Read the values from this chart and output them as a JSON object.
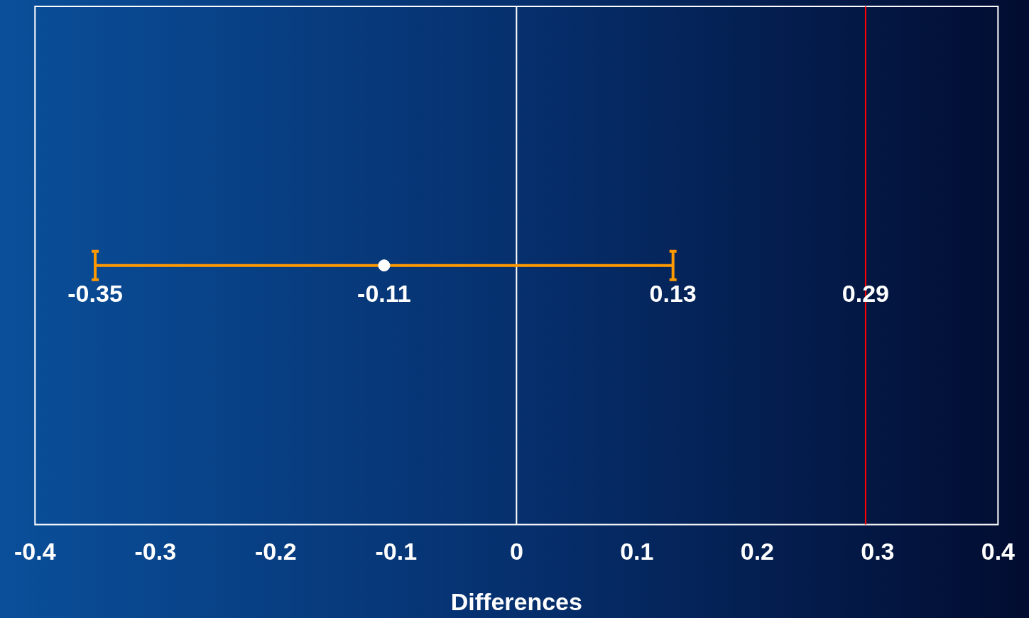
{
  "chart_data": {
    "type": "scatter",
    "orientation": "horizontal",
    "categories": [
      null
    ],
    "xlabel": "Differences",
    "xlim": [
      -0.4,
      0.4
    ],
    "xticks": [
      -0.4,
      -0.3,
      -0.2,
      -0.1,
      0,
      0.1,
      0.2,
      0.3,
      0.4
    ],
    "grid": false,
    "legend": false,
    "marker": "circle",
    "series": [
      {
        "color": "#ffffff",
        "values": [
          -0.11
        ],
        "errors": [
          [
            -0.35,
            0.13
          ]
        ],
        "value_labels": [
          "-0.11"
        ]
      }
    ],
    "tick_labels": "x",
    "annotations": [
      "-0.35",
      "0.13"
    ],
    "ref_lines": [
      {
        "axis": "x",
        "value": 0,
        "color": "#ffffff"
      },
      {
        "axis": "x",
        "value": 0.29,
        "label": "0.29",
        "color": "#ff0000"
      }
    ]
  }
}
